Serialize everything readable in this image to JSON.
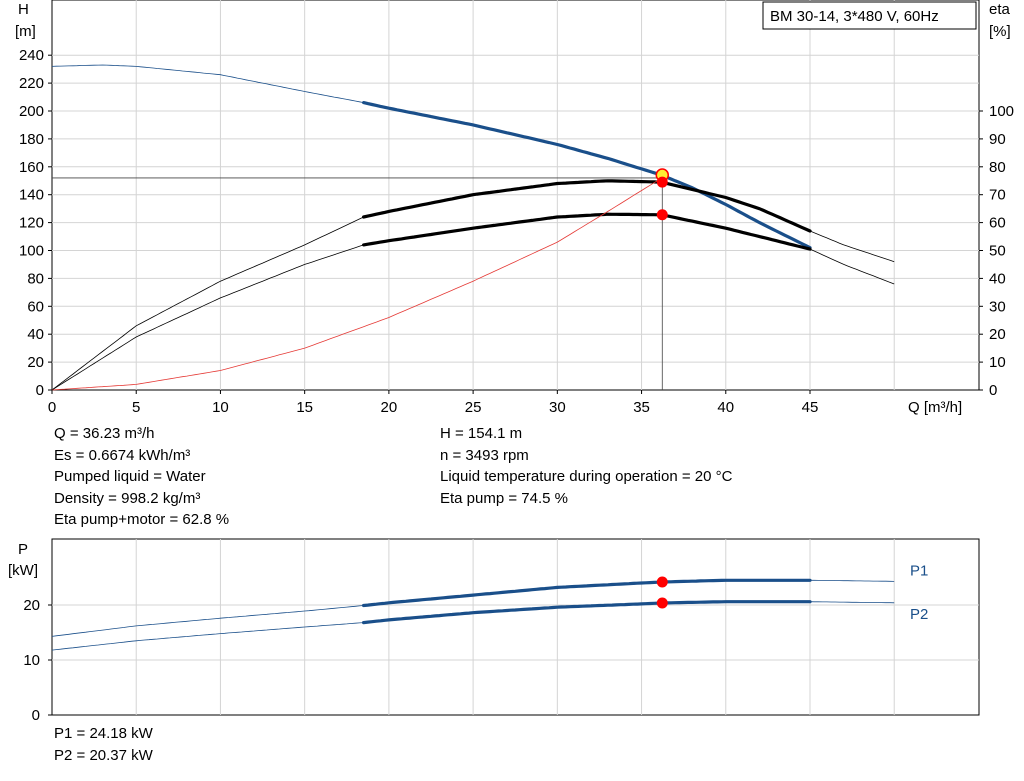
{
  "title_box": "BM 30-14, 3*480 V, 60Hz",
  "info_left": [
    "Q = 36.23 m³/h",
    "Es = 0.6674 kWh/m³",
    "Pumped liquid = Water",
    "Density = 998.2 kg/m³",
    "Eta pump+motor = 62.8 %"
  ],
  "info_right": [
    "H = 154.1 m",
    "n = 3493 rpm",
    "Liquid temperature during operation = 20 °C",
    "Eta pump = 74.5 %"
  ],
  "power_info": [
    "P1 = 24.18 kW",
    "P2 = 20.37 kW"
  ],
  "colors": {
    "head": "#1a4f8a",
    "eta": "#000000",
    "npsh": "#e53935",
    "grid": "#d4d4d4",
    "marker": "#ff0000",
    "duty_marker": "#ffee33"
  },
  "chart_data": [
    {
      "type": "line",
      "xlabel": "Q [m³/h]",
      "ylabel": "H\n[m]",
      "y2label": "eta\n[%]",
      "xlim": [
        0,
        50
      ],
      "ylim": [
        0,
        250
      ],
      "y2lim": [
        0,
        125
      ],
      "xticks": [
        0,
        5,
        10,
        15,
        20,
        25,
        30,
        35,
        40,
        45
      ],
      "yticks": [
        0,
        20,
        40,
        60,
        80,
        100,
        120,
        140,
        160,
        180,
        200,
        220,
        240
      ],
      "y2ticks": [
        0,
        10,
        20,
        30,
        40,
        50,
        60,
        70,
        80,
        90,
        100
      ],
      "grid": true,
      "series": [
        {
          "name": "H",
          "axis": "left",
          "color": "#1a4f8a",
          "x": [
            0,
            3,
            5,
            10,
            15,
            18.5,
            20,
            25,
            30,
            33,
            36.2,
            38,
            40,
            42,
            45
          ],
          "y": [
            232,
            233,
            232,
            226,
            214,
            206,
            202,
            190,
            176,
            166,
            154,
            145,
            133,
            120,
            102
          ],
          "bold_range": [
            18.5,
            45
          ]
        },
        {
          "name": "Eta pump",
          "axis": "right",
          "color": "#000000",
          "x": [
            0,
            5,
            10,
            15,
            18.5,
            20,
            25,
            30,
            33,
            36.2,
            40,
            42,
            45,
            47,
            50
          ],
          "y": [
            0,
            23,
            39,
            52,
            62,
            64,
            70,
            74,
            75,
            74.5,
            69,
            65,
            57,
            52,
            46
          ],
          "bold_range": [
            18.5,
            45
          ]
        },
        {
          "name": "Eta pump+motor",
          "axis": "right",
          "color": "#000000",
          "x": [
            0,
            5,
            10,
            15,
            18.5,
            20,
            25,
            30,
            33,
            36.2,
            40,
            42,
            45,
            47,
            50
          ],
          "y": [
            0,
            19,
            33,
            45,
            52,
            53.5,
            58,
            62,
            63,
            62.8,
            58,
            55,
            50.5,
            45,
            38
          ],
          "bold_range": [
            18.5,
            45
          ]
        },
        {
          "name": "Es",
          "axis": "left",
          "color": "#e53935",
          "x": [
            0,
            5,
            10,
            15,
            20,
            25,
            30,
            33,
            36.2
          ],
          "y": [
            0,
            4,
            14,
            30,
            52,
            78,
            106,
            128,
            152
          ]
        }
      ],
      "duty_point": {
        "Q": 36.23,
        "H": 154.1,
        "eta_pump": 74.5,
        "eta_total": 62.8
      }
    },
    {
      "type": "line",
      "xlim": [
        0,
        50
      ],
      "ylim": [
        0,
        29
      ],
      "ylabel": "P\n[kW]",
      "yticks": [
        0,
        10,
        20
      ],
      "grid": true,
      "series": [
        {
          "name": "P1",
          "color": "#1a4f8a",
          "x": [
            0,
            5,
            10,
            15,
            18.5,
            20,
            25,
            30,
            35,
            36.2,
            40,
            45,
            50
          ],
          "y": [
            14.3,
            16.2,
            17.6,
            18.9,
            19.9,
            20.4,
            21.8,
            23.2,
            24.0,
            24.18,
            24.5,
            24.5,
            24.3
          ],
          "bold_range": [
            18.5,
            45
          ]
        },
        {
          "name": "P2",
          "color": "#1a4f8a",
          "x": [
            0,
            5,
            10,
            15,
            18.5,
            20,
            25,
            30,
            35,
            36.2,
            40,
            45,
            50
          ],
          "y": [
            11.8,
            13.5,
            14.8,
            16.0,
            16.8,
            17.3,
            18.6,
            19.6,
            20.2,
            20.37,
            20.6,
            20.6,
            20.4
          ],
          "bold_range": [
            18.5,
            45
          ]
        }
      ],
      "operating_point": {
        "Q": 36.23,
        "P1": 24.18,
        "P2": 20.37
      }
    }
  ]
}
